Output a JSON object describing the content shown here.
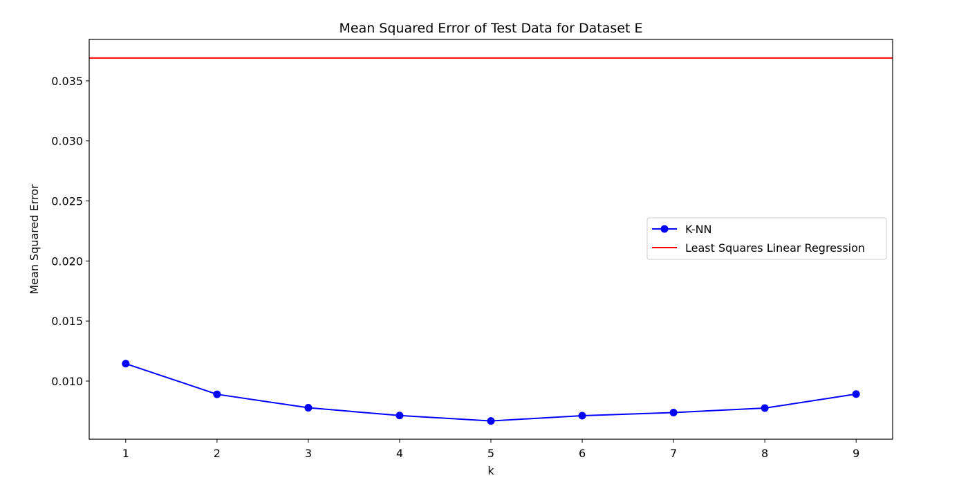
{
  "chart_data": {
    "type": "line",
    "title": "Mean Squared Error of Test Data for Dataset E",
    "xlabel": "k",
    "ylabel": "Mean Squared Error",
    "xlim": [
      0.6,
      9.4
    ],
    "ylim": [
      0.00516,
      0.03845
    ],
    "x_ticks": [
      1,
      2,
      3,
      4,
      5,
      6,
      7,
      8,
      9
    ],
    "y_ticks": [
      0.01,
      0.015,
      0.02,
      0.025,
      0.03,
      0.035
    ],
    "y_tick_labels": [
      "0.010",
      "0.015",
      "0.020",
      "0.025",
      "0.030",
      "0.035"
    ],
    "grid": false,
    "legend_position": "center-right",
    "series": [
      {
        "name": "K-NN",
        "color": "#0000ff",
        "marker": "circle",
        "x": [
          1,
          2,
          3,
          4,
          5,
          6,
          7,
          8,
          9
        ],
        "values": [
          0.01145,
          0.0089,
          0.00778,
          0.00713,
          0.00668,
          0.00712,
          0.00738,
          0.00775,
          0.00892
        ]
      },
      {
        "name": "Least Squares Linear Regression",
        "color": "#ff0000",
        "type": "hline",
        "y": 0.0369
      }
    ]
  }
}
